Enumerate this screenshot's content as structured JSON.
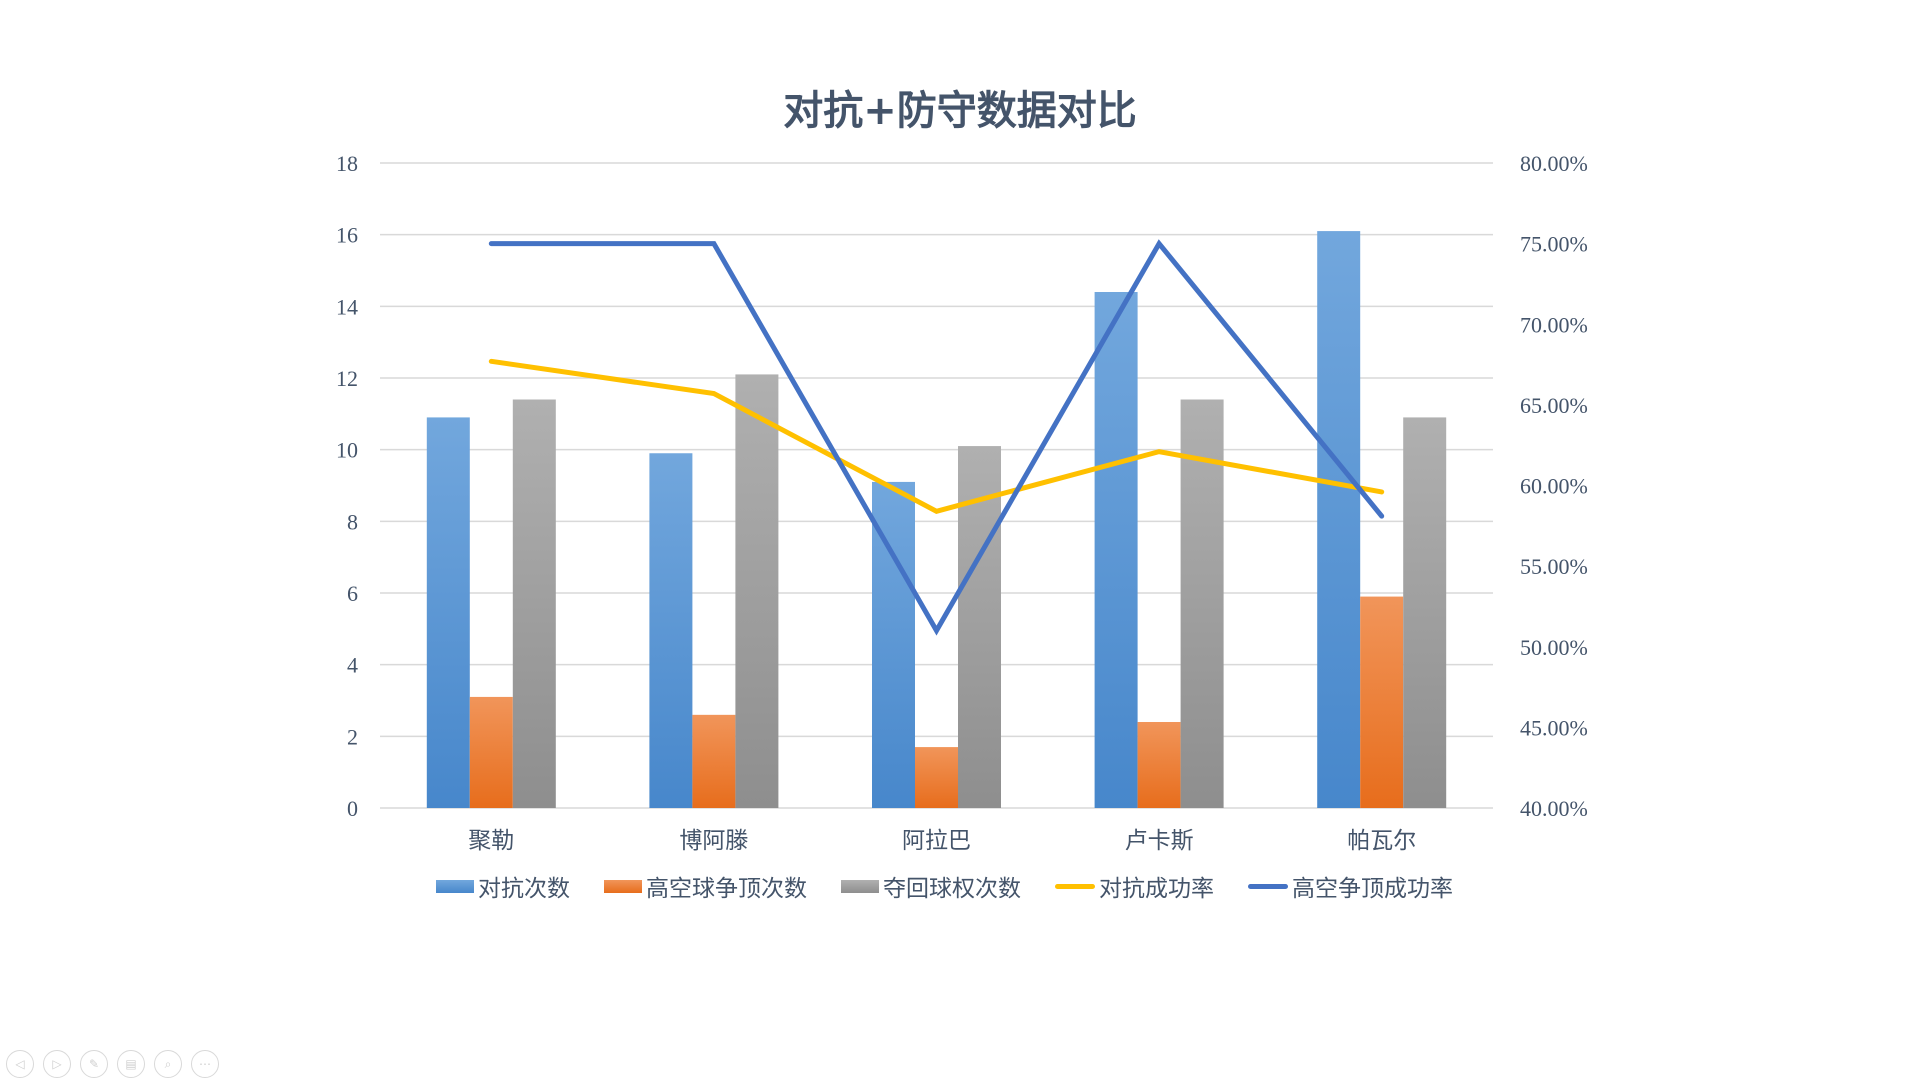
{
  "chart_data": {
    "type": "bar+line",
    "title": "对抗+防守数据对比",
    "categories": [
      "聚勒",
      "博阿滕",
      "阿拉巴",
      "卢卡斯",
      "帕瓦尔"
    ],
    "series": [
      {
        "name": "对抗次数",
        "kind": "bar",
        "axis": "left",
        "color": "#5b9bd5",
        "values": [
          10.9,
          9.9,
          9.1,
          14.4,
          16.1
        ]
      },
      {
        "name": "高空球争顶次数",
        "kind": "bar",
        "axis": "left",
        "color": "#ed7d31",
        "values": [
          3.1,
          2.6,
          1.7,
          2.4,
          5.9
        ]
      },
      {
        "name": "夺回球权次数",
        "kind": "bar",
        "axis": "left",
        "color": "#a5a5a5",
        "values": [
          11.4,
          12.1,
          10.1,
          11.4,
          10.9
        ]
      },
      {
        "name": "对抗成功率",
        "kind": "line",
        "axis": "right",
        "color": "#ffc000",
        "values": [
          67.7,
          65.7,
          58.4,
          62.1,
          59.6
        ]
      },
      {
        "name": "高空争顶成功率",
        "kind": "line",
        "axis": "right",
        "color": "#4472c4",
        "values": [
          75.0,
          75.0,
          51.0,
          75.0,
          58.1
        ]
      }
    ],
    "y_left": {
      "min": 0,
      "max": 18,
      "step": 2,
      "ticks": [
        "0",
        "2",
        "4",
        "6",
        "8",
        "10",
        "12",
        "14",
        "16",
        "18"
      ]
    },
    "y_right": {
      "min": 40,
      "max": 80,
      "step": 5,
      "ticks": [
        "40.00%",
        "45.00%",
        "50.00%",
        "55.00%",
        "60.00%",
        "65.00%",
        "70.00%",
        "75.00%",
        "80.00%"
      ]
    },
    "xlabel": "",
    "ylabel": "",
    "grid": true,
    "legend_position": "bottom"
  },
  "toolbar": {
    "buttons": [
      {
        "name": "prev-slide",
        "glyph": "◁"
      },
      {
        "name": "next-slide",
        "glyph": "▷"
      },
      {
        "name": "pen",
        "glyph": "✎"
      },
      {
        "name": "slides",
        "glyph": "▤"
      },
      {
        "name": "zoom",
        "glyph": "⌕"
      },
      {
        "name": "more",
        "glyph": "⋯"
      }
    ]
  }
}
